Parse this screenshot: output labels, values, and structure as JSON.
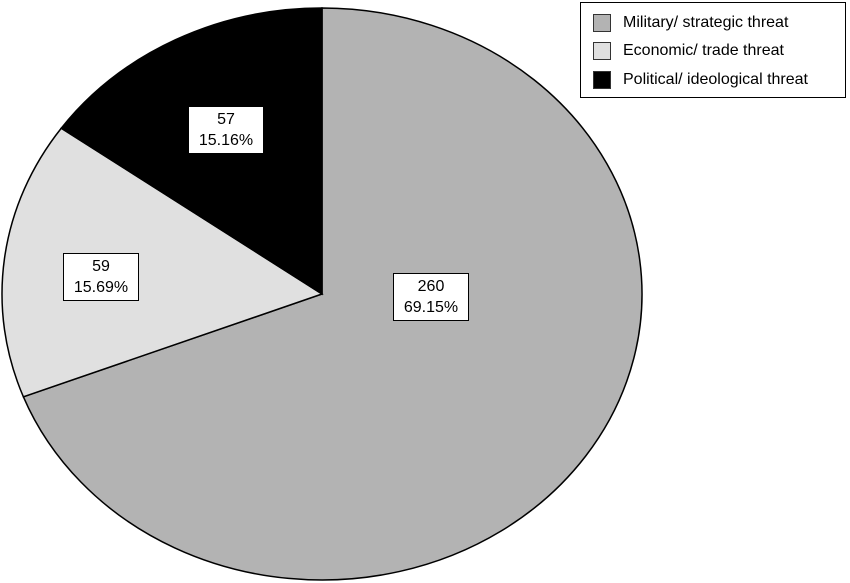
{
  "chart_data": {
    "type": "pie",
    "start_angle": "top",
    "direction": "clockwise",
    "legend_position": "top-right",
    "slices": [
      {
        "label": "Military/ strategic threat",
        "value": 260,
        "percent": "69.15%",
        "color": "#b3b3b3"
      },
      {
        "label": "Economic/ trade threat",
        "value": 59,
        "percent": "15.69%",
        "color": "#e0e0e0"
      },
      {
        "label": "Political/ ideological threat",
        "value": 57,
        "percent": "15.16%",
        "color": "#000000"
      }
    ]
  }
}
